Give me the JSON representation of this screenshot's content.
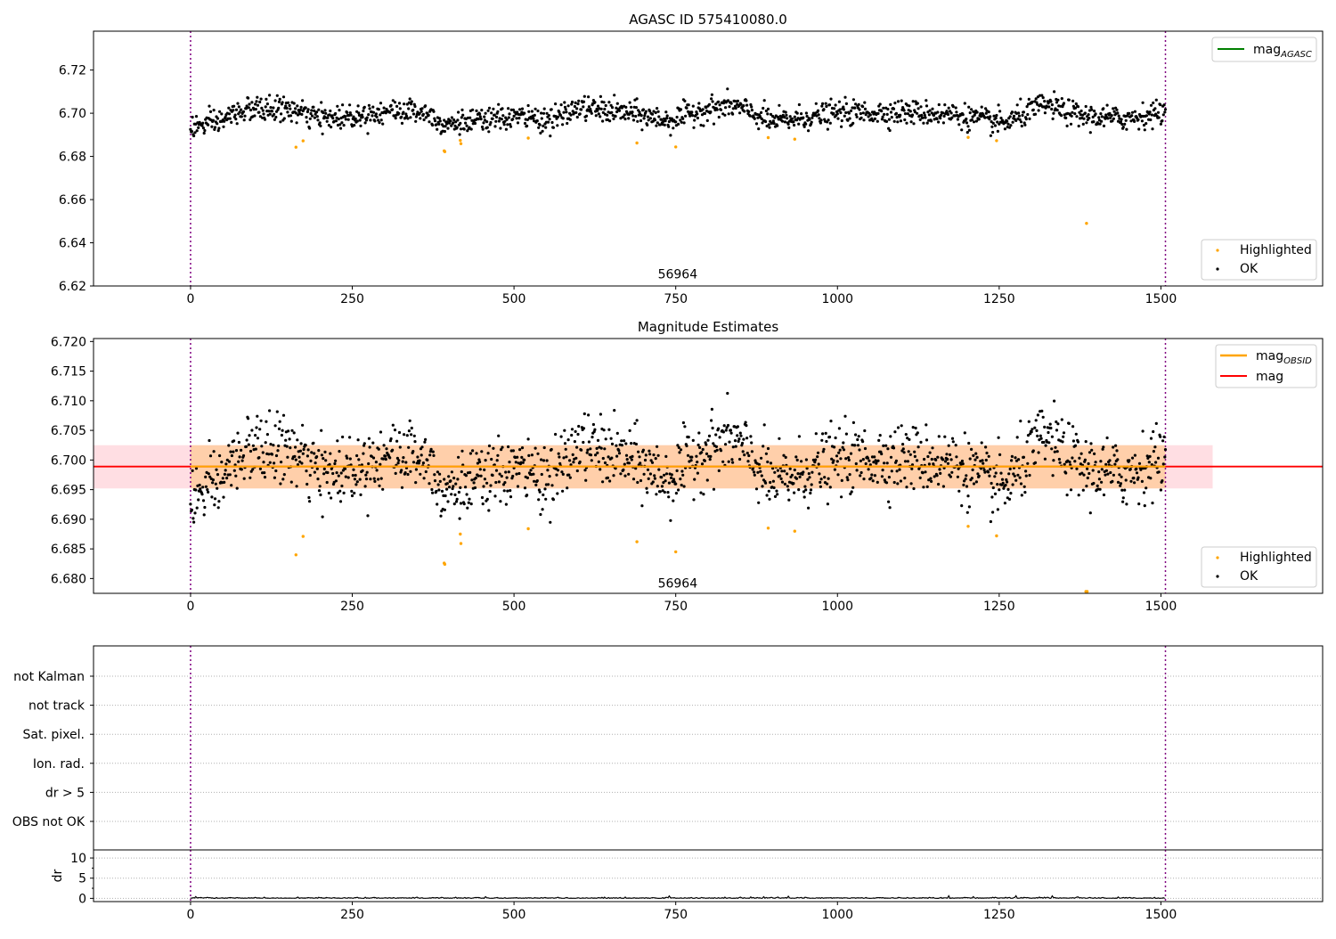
{
  "chart_data": [
    {
      "type": "scatter",
      "title": "AGASC ID 575410080.0",
      "ylim": [
        6.62,
        6.738
      ],
      "xlim": [
        -150,
        1750
      ],
      "xticks": [
        0,
        250,
        500,
        750,
        1000,
        1250,
        1500
      ],
      "yticks": [
        6.62,
        6.64,
        6.66,
        6.68,
        6.7,
        6.72
      ],
      "ytick_labels": [
        "6.62",
        "6.64",
        "6.66",
        "6.68",
        "6.70",
        "6.72"
      ],
      "vlines": [
        0,
        1507
      ],
      "obsid_label": {
        "text": "56964",
        "x": 753,
        "y": 6.6235
      },
      "legend_upper": [
        {
          "name": "mag_AGASC",
          "text": "mag",
          "sub": "AGASC",
          "color": "#008000"
        }
      ],
      "legend_lower": [
        {
          "name": "Highlighted",
          "text": "Highlighted",
          "color": "#FFA500"
        },
        {
          "name": "OK",
          "text": "OK",
          "color": "#000000"
        }
      ],
      "series": [
        {
          "name": "OK",
          "color": "#000000"
        },
        {
          "name": "Highlighted",
          "color": "#FFA500",
          "x": [
            163,
            174,
            392,
            393,
            417,
            418,
            522,
            690,
            750,
            893,
            934,
            1202,
            1246,
            1385
          ],
          "y": [
            6.6843,
            6.6872,
            6.6826,
            6.6822,
            6.6874,
            6.6859,
            6.6885,
            6.6862,
            6.6844,
            6.6887,
            6.688,
            6.6888,
            6.6873,
            6.649
          ]
        }
      ]
    },
    {
      "type": "scatter",
      "title": "Magnitude Estimates",
      "ylim": [
        6.6775,
        6.7205
      ],
      "xlim": [
        -150,
        1750
      ],
      "xticks": [
        0,
        250,
        500,
        750,
        1000,
        1250,
        1500
      ],
      "yticks": [
        6.68,
        6.685,
        6.69,
        6.695,
        6.7,
        6.705,
        6.71,
        6.715,
        6.72
      ],
      "ytick_labels": [
        "6.680",
        "6.685",
        "6.690",
        "6.695",
        "6.700",
        "6.705",
        "6.710",
        "6.715",
        "6.720"
      ],
      "vlines": [
        0,
        1507
      ],
      "obsid_label": {
        "text": "56964",
        "x": 753,
        "y": 6.6785
      },
      "mean_line": {
        "y": 6.6989,
        "band": [
          6.6952,
          6.7025
        ],
        "x_range_band": [
          -150,
          1580
        ],
        "obs_range": [
          0,
          1507
        ]
      },
      "legend_upper": [
        {
          "name": "mag_OBSID",
          "text": "mag",
          "sub": "OBSID",
          "color": "#FFA500"
        },
        {
          "name": "mag",
          "text": "mag",
          "sub": "",
          "color": "#FF0000"
        }
      ],
      "legend_lower": [
        {
          "name": "Highlighted",
          "text": "Highlighted",
          "color": "#FFA500"
        },
        {
          "name": "OK",
          "text": "OK",
          "color": "#000000"
        }
      ],
      "series": [
        {
          "name": "OK",
          "color": "#000000"
        },
        {
          "name": "Highlighted",
          "color": "#FFA500",
          "x": [
            163,
            174,
            392,
            393,
            417,
            418,
            522,
            690,
            750,
            893,
            934,
            1202,
            1246,
            1384,
            1386
          ],
          "y": [
            6.684,
            6.6871,
            6.6826,
            6.6824,
            6.6875,
            6.6859,
            6.6884,
            6.6862,
            6.6845,
            6.6885,
            6.688,
            6.6888,
            6.6872,
            6.6778,
            6.6778
          ]
        }
      ]
    },
    {
      "type": "scatter",
      "title": "",
      "categories": [
        "not Kalman",
        "not track",
        "Sat. pixel.",
        "Ion. rad.",
        "dr > 5",
        "OBS not OK"
      ],
      "xlim": [
        -150,
        1750
      ],
      "vlines": [
        0,
        1507
      ],
      "series": []
    },
    {
      "type": "line",
      "title": "",
      "ylabel": "dr",
      "ylim": [
        -0.8,
        12
      ],
      "yticks": [
        0,
        5,
        10
      ],
      "ytick_labels": [
        "0",
        "5",
        "10"
      ],
      "xlim": [
        -150,
        1750
      ],
      "xticks": [
        0,
        250,
        500,
        750,
        1000,
        1250,
        1500
      ],
      "vlines": [
        0,
        1507
      ],
      "series": [
        {
          "name": "dr",
          "color": "#000000"
        }
      ]
    }
  ]
}
